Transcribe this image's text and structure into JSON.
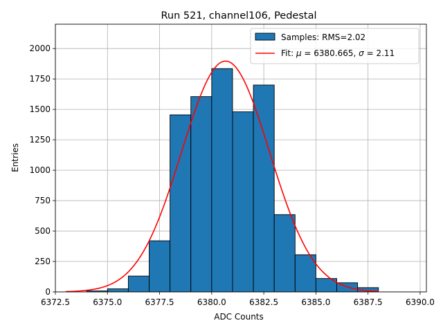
{
  "chart_data": {
    "type": "bar",
    "title": "Run 521, channel106, Pedestal",
    "xlabel": "ADC Counts",
    "ylabel": "Entries",
    "xlim": [
      6372.5,
      6390.3
    ],
    "ylim": [
      0,
      2200
    ],
    "grid": true,
    "legend_position": "top-right",
    "xticks": [
      6372.5,
      6375.0,
      6377.5,
      6380.0,
      6382.5,
      6385.0,
      6387.5,
      6390.0
    ],
    "xtick_labels": [
      "6372.5",
      "6375.0",
      "6377.5",
      "6380.0",
      "6382.5",
      "6385.0",
      "6387.5",
      "6390.0"
    ],
    "yticks": [
      0,
      250,
      500,
      750,
      1000,
      1250,
      1500,
      1750,
      2000
    ],
    "ytick_labels": [
      "0",
      "250",
      "500",
      "750",
      "1000",
      "1250",
      "1500",
      "1750",
      "2000"
    ],
    "bin_width": 1,
    "bins": [
      {
        "left": 6374,
        "value": 8
      },
      {
        "left": 6375,
        "value": 25
      },
      {
        "left": 6376,
        "value": 130
      },
      {
        "left": 6377,
        "value": 420
      },
      {
        "left": 6378,
        "value": 1455
      },
      {
        "left": 6379,
        "value": 1605
      },
      {
        "left": 6380,
        "value": 1835
      },
      {
        "left": 6381,
        "value": 1480
      },
      {
        "left": 6382,
        "value": 1700
      },
      {
        "left": 6383,
        "value": 635
      },
      {
        "left": 6384,
        "value": 305
      },
      {
        "left": 6385,
        "value": 110
      },
      {
        "left": 6386,
        "value": 75
      },
      {
        "left": 6387,
        "value": 35
      }
    ],
    "fit": {
      "mu": 6380.665,
      "sigma": 2.11,
      "amplitude": 1897,
      "x_range": [
        6373,
        6388
      ]
    },
    "legend": {
      "samples_label": "Samples: RMS=2.02",
      "fit_prefix": "Fit: ",
      "mu_symbol": "μ",
      "mu_text": " = 6380.665, ",
      "sigma_symbol": "σ",
      "sigma_text": " = 2.11"
    },
    "colors": {
      "bar": "#1f77b4",
      "bar_edge": "#000000",
      "fit": "#ff0000",
      "grid": "#b0b0b0"
    }
  }
}
